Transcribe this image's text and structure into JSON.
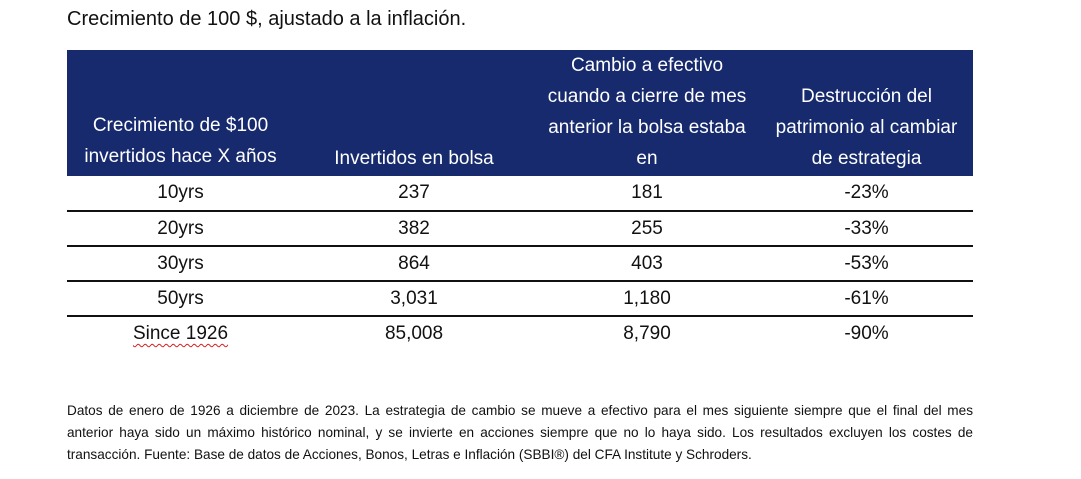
{
  "title": "Crecimiento de 100 $, ajustado a la inflación.",
  "table": {
    "headers": [
      "Crecimiento de $100 invertidos hace X años",
      "Invertidos en bolsa",
      "Cambio a efectivo cuando a cierre de mes anterior la bolsa estaba en",
      "Destrucción del patrimonio al cambiar de estrategia"
    ],
    "header_color": "#162a6d",
    "rows": [
      {
        "period": "10yrs",
        "invested": "237",
        "switch_cash": "181",
        "destruction": "-23%"
      },
      {
        "period": "20yrs",
        "invested": "382",
        "switch_cash": "255",
        "destruction": "-33%"
      },
      {
        "period": "30yrs",
        "invested": "864",
        "switch_cash": "403",
        "destruction": "-53%"
      },
      {
        "period": "50yrs",
        "invested": "3,031",
        "switch_cash": "1,180",
        "destruction": "-61%"
      },
      {
        "period": "Since 1926",
        "invested": "85,008",
        "switch_cash": "8,790",
        "destruction": "-90%"
      }
    ]
  },
  "footnote": "Datos de enero de 1926 a diciembre de 2023. La estrategia de cambio se mueve a efectivo para el mes siguiente siempre que el final del mes anterior haya sido un máximo histórico nominal, y se invierte en acciones siempre que no lo haya sido. Los resultados excluyen los costes de transacción. Fuente: Base de datos de Acciones, Bonos, Letras e Inflación (SBBI®) del CFA Institute y Schroders."
}
